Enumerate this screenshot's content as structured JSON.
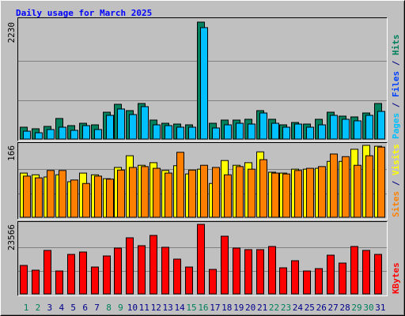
{
  "chart_data": [
    {
      "type": "bar",
      "title": "Daily usage for March 2025",
      "title_color": "#0000ff",
      "ylim": [
        0,
        2230
      ],
      "yticks": [
        2230
      ],
      "grid_divisions": 3,
      "series": [
        {
          "name": "Hits",
          "color": "#00805c",
          "values": [
            226,
            196,
            241,
            392,
            256,
            301,
            271,
            512,
            663,
            542,
            678,
            362,
            301,
            286,
            271,
            2230,
            301,
            362,
            362,
            377,
            542,
            377,
            271,
            316,
            286,
            377,
            512,
            437,
            422,
            497,
            678
          ]
        },
        {
          "name": "Pages",
          "color": "#00c0ff",
          "values": [
            150,
            120,
            181,
            226,
            166,
            256,
            181,
            452,
            573,
            467,
            618,
            271,
            256,
            226,
            226,
            2125,
            211,
            271,
            301,
            286,
            497,
            301,
            226,
            286,
            226,
            271,
            452,
            377,
            347,
            452,
            527
          ]
        }
      ],
      "legend": [
        {
          "text": "Pages",
          "color": "#00c0ff"
        },
        {
          "text": "Files",
          "color": "#0040ff"
        },
        {
          "text": "Hits",
          "color": "#00805c"
        }
      ],
      "separator": "/"
    },
    {
      "type": "bar",
      "ylim": [
        0,
        166
      ],
      "yticks": [
        166
      ],
      "grid_divisions": 3,
      "series": [
        {
          "name": "Visits",
          "color": "#ffff00",
          "values": [
            102,
            98,
            93,
            98,
            82,
            102,
            98,
            89,
            115,
            142,
            120,
            126,
            108,
            119,
            100,
            111,
            78,
            131,
            120,
            126,
            151,
            104,
            102,
            111,
            111,
            113,
            129,
            129,
            157,
            166,
            164
          ]
        },
        {
          "name": "Sites",
          "color": "#ff8000",
          "values": [
            95,
            91,
            108,
            108,
            86,
            78,
            95,
            88,
            109,
            115,
            117,
            113,
            102,
            150,
            109,
            120,
            115,
            98,
            117,
            111,
            133,
            102,
            100,
            108,
            113,
            117,
            146,
            140,
            120,
            142,
            162
          ]
        }
      ],
      "legend": [
        {
          "text": "Sites",
          "color": "#ff8000"
        },
        {
          "text": "Visits",
          "color": "#ffff00"
        }
      ],
      "separator": "/"
    },
    {
      "type": "bar",
      "ylim": [
        0,
        23566
      ],
      "yticks": [
        23566
      ],
      "grid_divisions": 3,
      "series": [
        {
          "name": "KBytes",
          "color": "#ff0000",
          "values": [
            9640,
            8034,
            14729,
            7766,
            13390,
            14193,
            9105,
            12854,
            15532,
            19013,
            16335,
            19816,
            15800,
            11783,
            9105,
            23566,
            8302,
            19549,
            15532,
            14997,
            14997,
            16068,
            8837,
            11247,
            7766,
            8569,
            13122,
            10444,
            16068,
            14729,
            13390
          ]
        }
      ],
      "legend": [
        {
          "text": "KBytes",
          "color": "#ff0000"
        }
      ],
      "categories": [
        "1",
        "2",
        "3",
        "4",
        "5",
        "6",
        "7",
        "8",
        "9",
        "10",
        "11",
        "12",
        "13",
        "14",
        "15",
        "16",
        "17",
        "18",
        "19",
        "20",
        "21",
        "22",
        "23",
        "24",
        "25",
        "26",
        "27",
        "28",
        "29",
        "30",
        "31"
      ],
      "category_color": "#00008b",
      "highlight": [
        0,
        1,
        7,
        8,
        14,
        15,
        21,
        22,
        28,
        29
      ],
      "highlight_color": "#00805c"
    }
  ]
}
